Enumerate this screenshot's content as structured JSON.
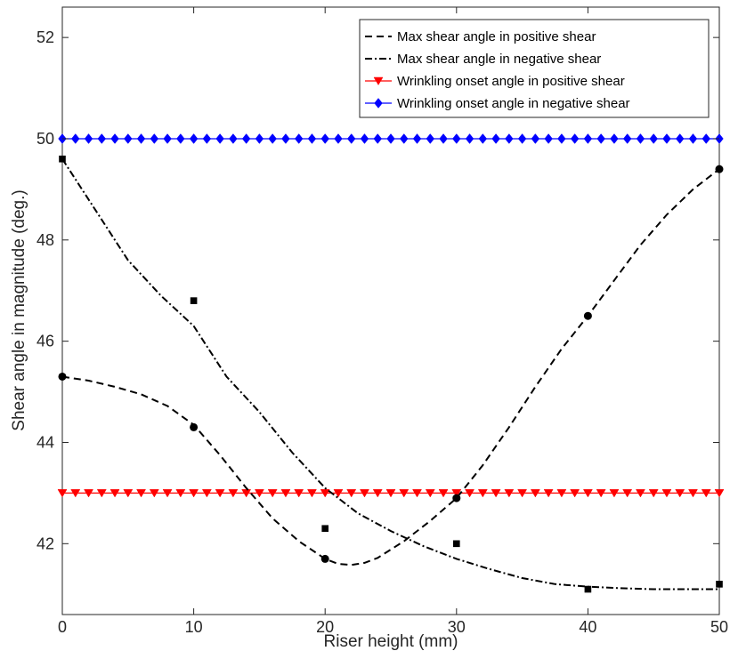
{
  "chart_data": {
    "type": "line",
    "xlabel": "Riser height (mm)",
    "ylabel": "Shear angle in magnitude (deg.)",
    "xlim": [
      0,
      50
    ],
    "ylim": [
      40.6,
      52.6
    ],
    "xticks": [
      0,
      10,
      20,
      30,
      40,
      50
    ],
    "xtick_labels": [
      "0",
      "10",
      "20",
      "30",
      "40",
      "50"
    ],
    "yticks": [
      42,
      44,
      46,
      48,
      50,
      52
    ],
    "ytick_labels": [
      "42",
      "44",
      "46",
      "48",
      "50",
      "52"
    ],
    "grid": false,
    "legend_position": "top-right",
    "series": [
      {
        "name": "Max shear angle in positive shear",
        "style": "dashed",
        "color": "#000000",
        "fit_curve": {
          "x": [
            0,
            2,
            4,
            6,
            8,
            10,
            12,
            14,
            16,
            18,
            20,
            21,
            22,
            23,
            24,
            26,
            28,
            30,
            32,
            34,
            36,
            38,
            40,
            42,
            44,
            46,
            48,
            50
          ],
          "y": [
            45.3,
            45.22,
            45.1,
            44.95,
            44.72,
            44.35,
            43.75,
            43.1,
            42.5,
            42.05,
            41.7,
            41.6,
            41.58,
            41.62,
            41.72,
            42.05,
            42.45,
            42.9,
            43.55,
            44.3,
            45.1,
            45.85,
            46.5,
            47.2,
            47.9,
            48.5,
            49.0,
            49.4
          ]
        },
        "markers": {
          "symbol": "circle",
          "x": [
            0,
            10,
            20,
            30,
            40,
            50
          ],
          "y": [
            45.3,
            44.3,
            41.7,
            42.9,
            46.5,
            49.4
          ]
        }
      },
      {
        "name": "Max shear angle in negative shear",
        "style": "dashdot",
        "color": "#000000",
        "fit_curve": {
          "x": [
            0,
            2.5,
            5,
            7.5,
            10,
            12.5,
            15,
            17.5,
            20,
            22.5,
            25,
            27.5,
            30,
            32.5,
            35,
            37.5,
            40,
            42.5,
            45,
            47.5,
            50
          ],
          "y": [
            49.6,
            48.6,
            47.6,
            46.9,
            46.3,
            45.3,
            44.6,
            43.8,
            43.1,
            42.6,
            42.25,
            41.95,
            41.7,
            41.5,
            41.32,
            41.2,
            41.15,
            41.12,
            41.1,
            41.1,
            41.1
          ]
        },
        "markers": {
          "symbol": "square",
          "x": [
            0,
            10,
            20,
            30,
            40,
            50
          ],
          "y": [
            49.6,
            46.8,
            42.3,
            42.0,
            41.1,
            41.2
          ]
        }
      },
      {
        "name": "Wrinkling onset angle in positive shear",
        "style": "solid",
        "color": "#ff0000",
        "marker": "triangle-down",
        "x_range": [
          0,
          50
        ],
        "marker_count": 51,
        "y": 43.0
      },
      {
        "name": "Wrinkling onset angle in negative shear",
        "style": "solid",
        "color": "#0000ff",
        "marker": "diamond",
        "x_range": [
          0,
          50
        ],
        "marker_count": 51,
        "y": 50.0
      }
    ]
  }
}
